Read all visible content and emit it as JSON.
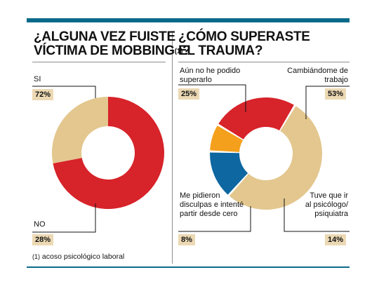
{
  "colors": {
    "accent_bar": "#0b6a8a",
    "red": "#d7232a",
    "tan": "#e3c78e",
    "orange": "#f4a01c",
    "blue": "#0e67a0",
    "pct_bg": "#ecd9b4"
  },
  "left": {
    "title_line1": "¿ALGUNA VEZ FUISTE",
    "title_line2": "VÍCTIMA DE MOBBING",
    "title_sup": "(1)",
    "title_end": "?"
  },
  "right": {
    "title_line1": "¿CÓMO SUPERASTE",
    "title_line2": "EL TRAUMA?"
  },
  "footnote": {
    "number": "(1)",
    "text": " acoso psicológico laboral"
  },
  "chart_data": [
    {
      "type": "pie",
      "variant": "donut",
      "title": "¿ALGUNA VEZ FUISTE VÍCTIMA DE MOBBING(1)?",
      "slices": [
        {
          "label": "SI",
          "value": 72,
          "display": "72%",
          "color": "#d7232a"
        },
        {
          "label": "NO",
          "value": 28,
          "display": "28%",
          "color": "#e3c78e"
        }
      ]
    },
    {
      "type": "pie",
      "variant": "donut",
      "title": "¿CÓMO SUPERASTE EL TRAUMA?",
      "slices": [
        {
          "label": "Cambiándome de trabajo",
          "value": 53,
          "display": "53%",
          "color": "#e3c78e"
        },
        {
          "label": "Tuve que ir al psicólogo/ psiquiatra",
          "value": 14,
          "display": "14%",
          "color": "#0e67a0"
        },
        {
          "label": "Me pidieron disculpas e intenté partir desde cero",
          "value": 8,
          "display": "8%",
          "color": "#f4a01c"
        },
        {
          "label": "Aún no he podido superarlo",
          "value": 25,
          "display": "25%",
          "color": "#d7232a"
        }
      ]
    }
  ]
}
